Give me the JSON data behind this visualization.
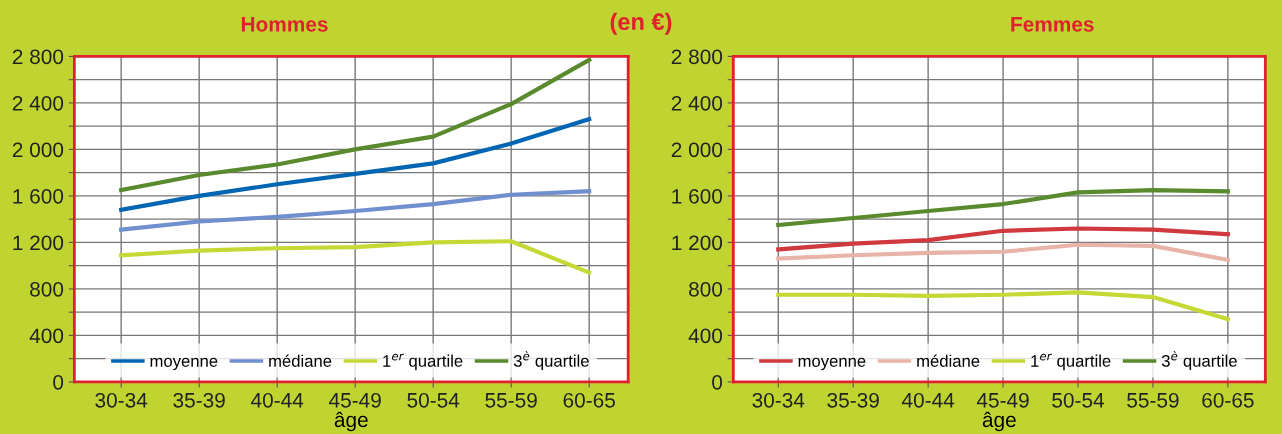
{
  "chart_data": [
    {
      "type": "line",
      "title": "Hommes",
      "xlabel": "âge",
      "annotations": [
        "(en €)"
      ],
      "categories": [
        "30-34",
        "35-39",
        "40-44",
        "45-49",
        "50-54",
        "55-59",
        "60-65"
      ],
      "series": [
        {
          "name": "moyenne",
          "color": "#0066b3",
          "values": [
            1480,
            1600,
            1700,
            1790,
            1880,
            2050,
            2260
          ]
        },
        {
          "name": "médiane",
          "color": "#6f8fcf",
          "values": [
            1310,
            1380,
            1420,
            1470,
            1530,
            1610,
            1640
          ]
        },
        {
          "name": "1$^{er}$ quartile",
          "color": "#c5d936",
          "values": [
            1090,
            1130,
            1150,
            1160,
            1200,
            1210,
            940
          ]
        },
        {
          "name": "3$^{è}$ quartile",
          "color": "#5a8a2e",
          "values": [
            1650,
            1780,
            1870,
            2000,
            2110,
            2390,
            2770
          ]
        }
      ],
      "ylim": [
        0,
        2800
      ],
      "yticks": [
        0,
        {
          "value": 200,
          "label": null
        },
        400,
        {
          "value": 600,
          "label": null
        },
        800,
        {
          "value": 1000,
          "label": null
        },
        {
          "value": 1200,
          "label": "1 200"
        },
        {
          "value": 1400,
          "label": null
        },
        {
          "value": 1600,
          "label": "1 600"
        },
        {
          "value": 1800,
          "label": null
        },
        {
          "value": 2000,
          "label": "2 000"
        },
        {
          "value": 2200,
          "label": null
        },
        {
          "value": 2400,
          "label": "2 400"
        },
        {
          "value": 2600,
          "label": null
        },
        {
          "value": 2800,
          "label": "2 800"
        }
      ],
      "grid": true,
      "legend": "bottom",
      "marker": "none",
      "line_style": "solid"
    },
    {
      "type": "line",
      "title": "Femmes",
      "xlabel": "âge",
      "categories": [
        "30-34",
        "35-39",
        "40-44",
        "45-49",
        "50-54",
        "55-59",
        "60-65"
      ],
      "series": [
        {
          "name": "moyenne",
          "color": "#d0393f",
          "values": [
            1140,
            1190,
            1220,
            1300,
            1320,
            1310,
            1270
          ]
        },
        {
          "name": "médiane",
          "color": "#e8b4a8",
          "values": [
            1060,
            1090,
            1110,
            1120,
            1180,
            1170,
            1050
          ]
        },
        {
          "name": "1$^{er}$ quartile",
          "color": "#c5d936",
          "values": [
            750,
            750,
            740,
            750,
            770,
            730,
            540
          ]
        },
        {
          "name": "3$^{è}$ quartile",
          "color": "#5a8a2e",
          "values": [
            1350,
            1410,
            1470,
            1530,
            1630,
            1650,
            1640
          ]
        }
      ],
      "ylim": [
        0,
        2800
      ],
      "yticks": [
        0,
        {
          "value": 200,
          "label": null
        },
        400,
        {
          "value": 600,
          "label": null
        },
        800,
        {
          "value": 1000,
          "label": null
        },
        {
          "value": 1200,
          "label": "1 200"
        },
        {
          "value": 1400,
          "label": null
        },
        {
          "value": 1600,
          "label": "1 600"
        },
        {
          "value": 1800,
          "label": null
        },
        {
          "value": 2000,
          "label": "2 000"
        },
        {
          "value": 2200,
          "label": null
        },
        {
          "value": 2400,
          "label": "2 400"
        },
        {
          "value": 2600,
          "label": null
        },
        {
          "value": 2800,
          "label": "2 800"
        }
      ],
      "grid": true,
      "legend": "bottom",
      "marker": "none",
      "line_style": "solid"
    }
  ]
}
